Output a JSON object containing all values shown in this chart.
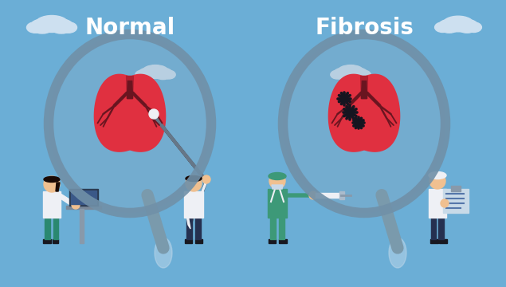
{
  "bg_color": "#6baed6",
  "title_normal": "Normal",
  "title_fibrosis": "Fibrosis",
  "title_fontsize": 20,
  "title_color": "#ffffff",
  "lung_red": "#e03040",
  "lung_dark_red": "#b02030",
  "lung_medium": "#cc2535",
  "bronchi_color": "#6a1520",
  "magnifier_rim": "#7090a8",
  "magnifier_fill": "#88aac0",
  "magnifier_alpha": 0.3,
  "doctor_white": "#eef0f5",
  "doctor_skin": "#f0c090",
  "doctor_green": "#3d9978",
  "doctor_teal": "#2a8870",
  "doctor_dark": "#253050",
  "doctor_hair_dark": "#1a0f0a",
  "doctor_hair_light": "#8a6040",
  "cloud_color": "#cde0f0",
  "fibrosis_spot": "#151520",
  "handle_color": "#7a9aac",
  "shadow_color": "#c0d8ea"
}
